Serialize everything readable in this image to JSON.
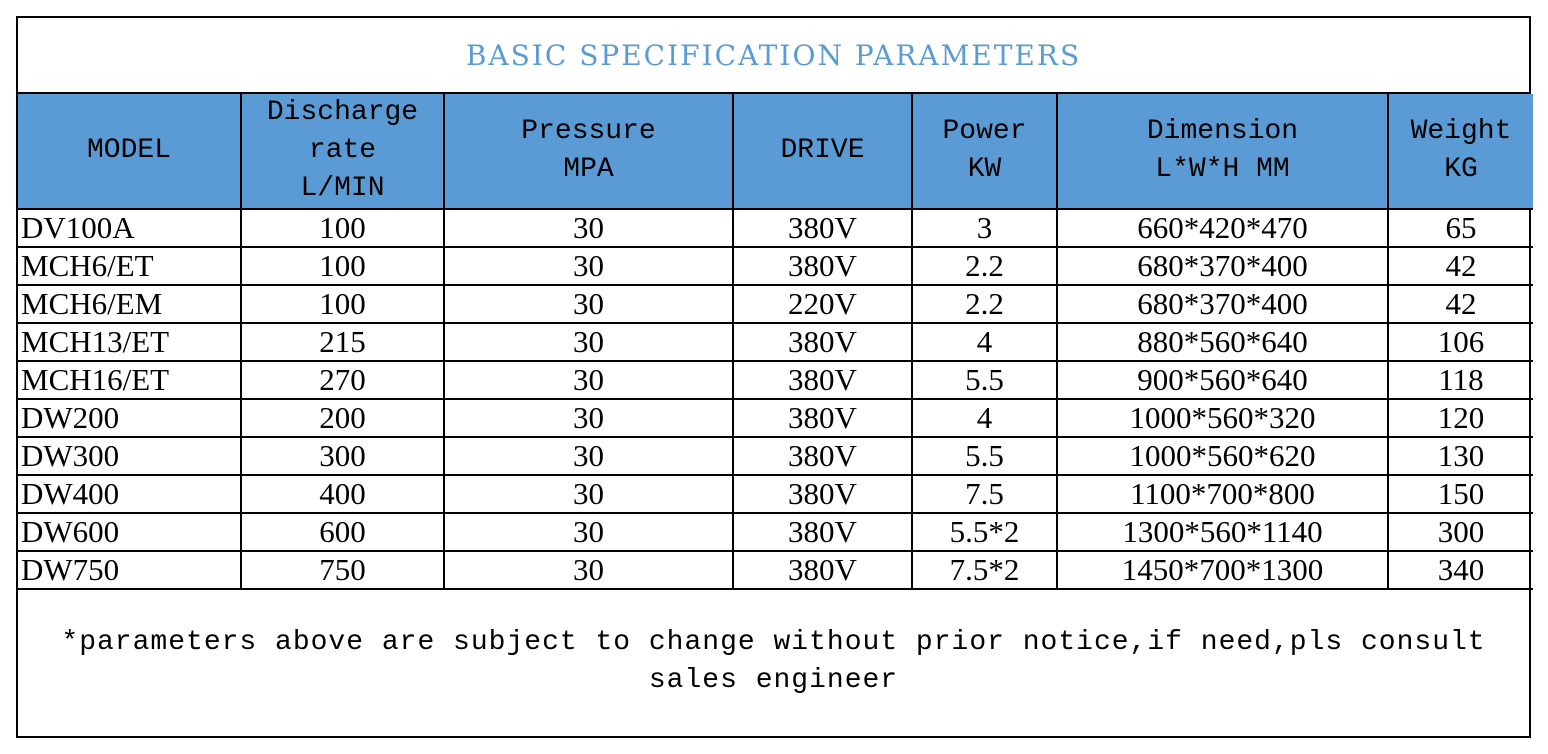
{
  "title": "BASIC SPECIFICATION PARAMETERS",
  "colors": {
    "title": "#5b9bd5",
    "header_bg": "#5b9bd5",
    "border": "#000000"
  },
  "table": {
    "headers": [
      {
        "lines": [
          "MODEL"
        ]
      },
      {
        "lines": [
          "Discharge",
          "rate",
          "L/MIN"
        ]
      },
      {
        "lines": [
          "Pressure",
          "MPA"
        ]
      },
      {
        "lines": [
          "DRIVE"
        ]
      },
      {
        "lines": [
          "Power",
          "KW"
        ]
      },
      {
        "lines": [
          "Dimension",
          "L*W*H MM"
        ]
      },
      {
        "lines": [
          "Weight",
          "KG"
        ]
      }
    ],
    "rows": [
      [
        "DV100A",
        "100",
        "30",
        "380V",
        "3",
        "660*420*470",
        "65"
      ],
      [
        "MCH6/ET",
        "100",
        "30",
        "380V",
        "2.2",
        "680*370*400",
        "42"
      ],
      [
        "MCH6/EM",
        "100",
        "30",
        "220V",
        "2.2",
        "680*370*400",
        "42"
      ],
      [
        "MCH13/ET",
        "215",
        "30",
        "380V",
        "4",
        "880*560*640",
        "106"
      ],
      [
        "MCH16/ET",
        "270",
        "30",
        "380V",
        "5.5",
        "900*560*640",
        "118"
      ],
      [
        "DW200",
        "200",
        "30",
        "380V",
        "4",
        "1000*560*320",
        "120"
      ],
      [
        "DW300",
        "300",
        "30",
        "380V",
        "5.5",
        "1000*560*620",
        "130"
      ],
      [
        "DW400",
        "400",
        "30",
        "380V",
        "7.5",
        "1100*700*800",
        "150"
      ],
      [
        "DW600",
        "600",
        "30",
        "380V",
        "5.5*2",
        "1300*560*1140",
        "300"
      ],
      [
        "DW750",
        "750",
        "30",
        "380V",
        "7.5*2",
        "1450*700*1300",
        "340"
      ]
    ]
  },
  "note": "*parameters above are subject to change without prior notice,if need,pls consult sales engineer"
}
